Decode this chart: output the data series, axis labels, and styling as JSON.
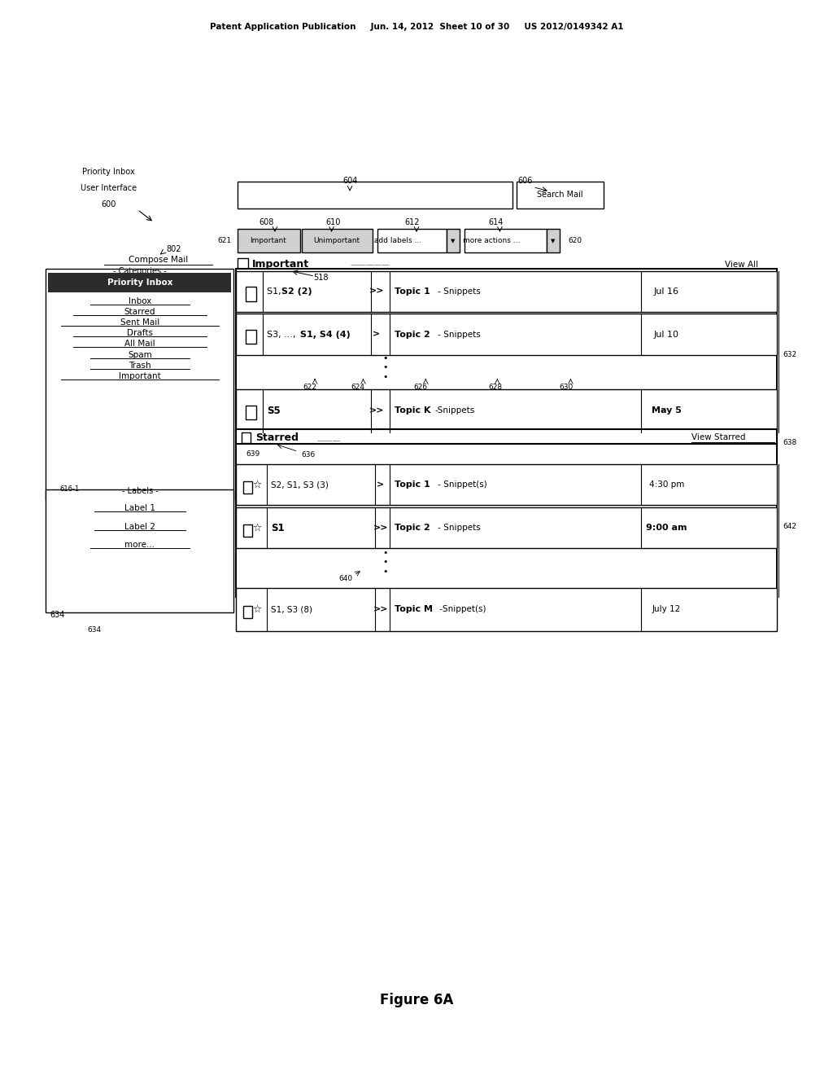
{
  "bg_color": "#ffffff",
  "header_text": "Patent Application Publication     Jun. 14, 2012  Sheet 10 of 30     US 2012/0149342 A1",
  "figure_label": "Figure 6A",
  "categories_items": [
    "Priority Inbox",
    "Inbox",
    "Starred",
    "Sent Mail",
    "Drafts",
    "All Mail",
    "Spam",
    "Trash",
    "Important"
  ],
  "labels_items": [
    "Label 1",
    "Label 2",
    "more..."
  ],
  "toolbar_buttons": [
    "Important",
    "Unimportant",
    "add labels ...",
    "more actions ..."
  ]
}
